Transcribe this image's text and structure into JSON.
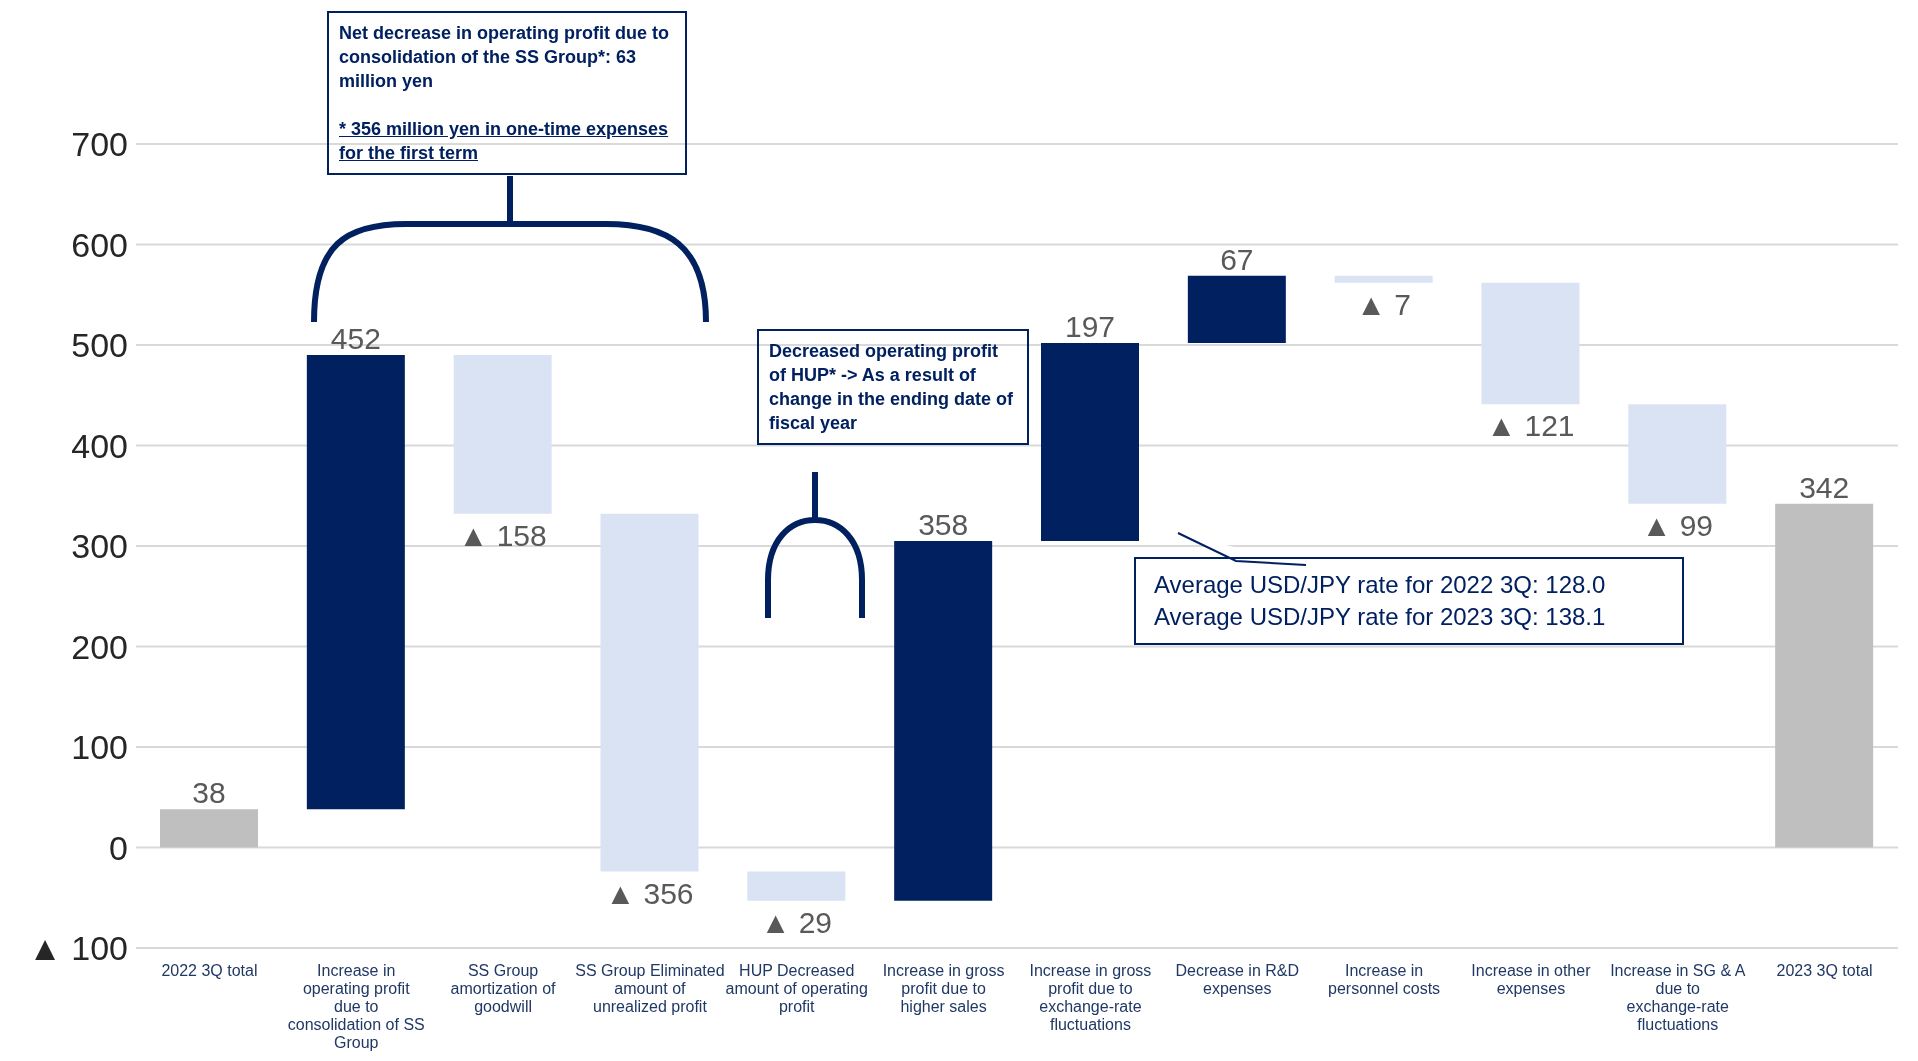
{
  "chart_data": {
    "type": "bar",
    "categories": [
      "2022 3Q total",
      "Increase in operating profit due to consolidation of SS Group",
      "SS Group amortization of goodwill",
      "SS Group Eliminated amount of unrealized profit",
      "HUP Decreased amount of operating profit",
      "Increase in gross profit due to higher sales",
      "Increase in gross profit due to exchange-rate fluctuations",
      "Decrease in R&D expenses",
      "Increase in personnel costs",
      "Increase in other expenses",
      "Increase in SG & A due to exchange-rate fluctuations",
      "2023 3Q total"
    ],
    "values": [
      38,
      452,
      -158,
      -356,
      -29,
      358,
      197,
      67,
      -7,
      -121,
      -99,
      342
    ],
    "base": [
      0,
      38,
      490,
      332,
      -24,
      -53,
      305,
      502,
      569,
      562,
      441,
      0
    ],
    "colors": [
      "#bfbfbf",
      "#002060",
      "#dae3f3",
      "#dae3f3",
      "#dae3f3",
      "#002060",
      "#002060",
      "#002060",
      "#dae3f3",
      "#dae3f3",
      "#dae3f3",
      "#bfbfbf"
    ],
    "value_labels": [
      "38",
      "452",
      "▲ 158",
      "▲ 356",
      "▲ 29",
      "358",
      "197",
      "67",
      "▲ 7",
      "▲ 121",
      "▲ 99",
      "342"
    ],
    "ylim": [
      -100,
      700
    ],
    "yticks": [
      {
        "value": -100,
        "label": "▲ 100"
      },
      0,
      100,
      200,
      300,
      400,
      500,
      600,
      700
    ],
    "grid": "y",
    "annotations": [
      "Net decrease in operating profit due to consolidation of the SS Group*: 63 million yen",
      "* 356 million yen in one-time expenses for the first term",
      "Decreased operating profit of HUP* -> As a result of change in the ending date of fiscal year",
      "Average USD/JPY rate for 2022 3Q: 128.0",
      "Average USD/JPY rate for 2023 3Q: 138.1"
    ]
  }
}
